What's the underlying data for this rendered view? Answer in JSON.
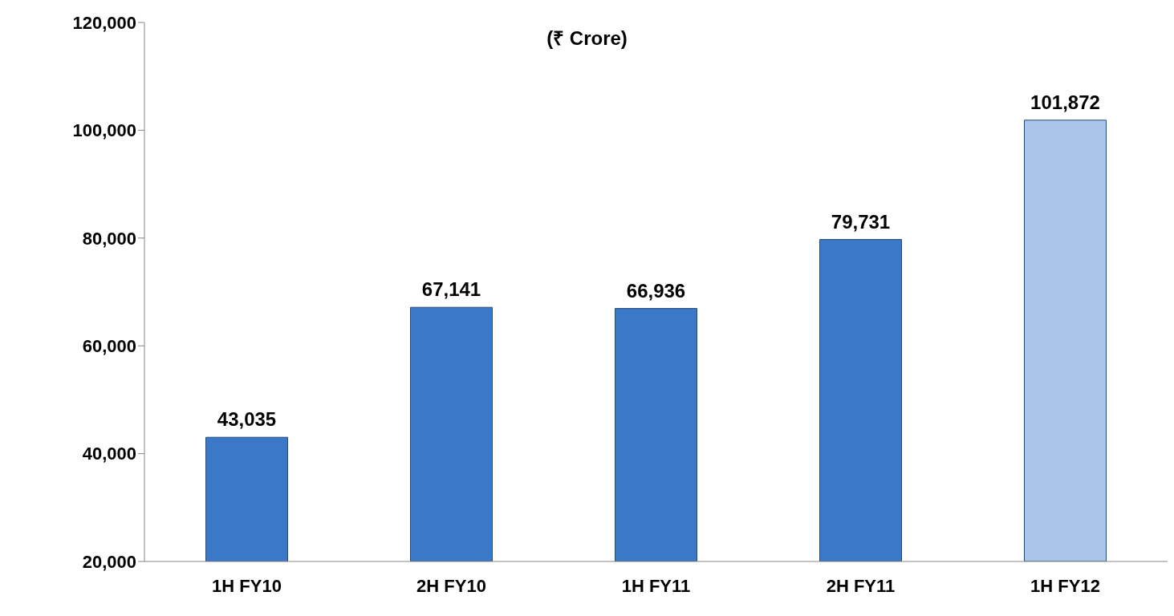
{
  "chart_data": {
    "type": "bar",
    "title": "(₹ Crore)",
    "categories": [
      "1H FY10",
      "2H FY10",
      "1H FY11",
      "2H FY11",
      "1H FY12"
    ],
    "values": [
      43035,
      67141,
      66936,
      79731,
      101872
    ],
    "value_labels": [
      "43,035",
      "67,141",
      "66,936",
      "79,731",
      "101,872"
    ],
    "colors": [
      "#3b78c8",
      "#3b78c8",
      "#3b78c8",
      "#3b78c8",
      "#a9c6ea"
    ],
    "ylim": [
      20000,
      120000
    ],
    "yticks": [
      {
        "value": 20000,
        "label": "20,000"
      },
      {
        "value": 40000,
        "label": "40,000"
      },
      {
        "value": 60000,
        "label": "60,000"
      },
      {
        "value": 80000,
        "label": "80,000"
      },
      {
        "value": 100000,
        "label": "100,000"
      },
      {
        "value": 120000,
        "label": "120,000"
      }
    ],
    "grid": false
  }
}
